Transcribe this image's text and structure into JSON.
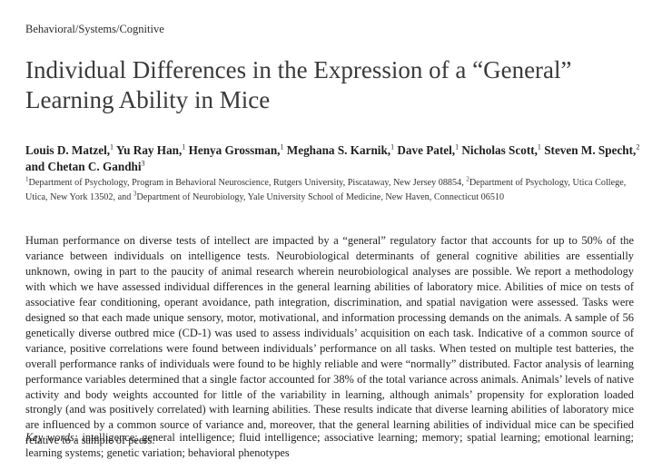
{
  "section_label": "Behavioral/Systems/Cognitive",
  "title": {
    "line1": "Individual Differences in the Expression of a “General”",
    "line2": "Learning Ability in Mice"
  },
  "authors": [
    {
      "name": "Louis D. Matzel,",
      "aff": "1"
    },
    {
      "name": "Yu Ray Han,",
      "aff": "1"
    },
    {
      "name": "Henya Grossman,",
      "aff": "1"
    },
    {
      "name": "Meghana S. Karnik,",
      "aff": "1"
    },
    {
      "name": "Dave Patel,",
      "aff": "1"
    },
    {
      "name": "Nicholas Scott,",
      "aff": "1"
    },
    {
      "name": "Steven M. Specht,",
      "aff": "2"
    },
    {
      "name": "and Chetan C. Gandhi",
      "aff": "3"
    }
  ],
  "affiliations": {
    "aff1_num": "1",
    "aff1": "Department of Psychology, Program in Behavioral Neuroscience, Rutgers University, Piscataway, New Jersey 08854, ",
    "aff2_num": "2",
    "aff2": "Department of Psychology, Utica College, Utica, New York 13502, and ",
    "aff3_num": "3",
    "aff3": "Department of Neurobiology, Yale University School of Medicine, New Haven, Connecticut 06510"
  },
  "abstract": "Human performance on diverse tests of intellect are impacted by a “general” regulatory factor that accounts for up to 50% of the variance between individuals on intelligence tests. Neurobiological determinants of general cognitive abilities are essentially unknown, owing in part to the paucity of animal research wherein neurobiological analyses are possible. We report a methodology with which we have assessed individual differences in the general learning abilities of laboratory mice. Abilities of mice on tests of associative fear condition­ing, operant avoidance, path integration, discrimination, and spatial navigation were assessed. Tasks were designed so that each made unique sensory, motor, motivational, and information processing demands on the animals. A sample of 56 genetically diverse outbred mice (CD-1) was used to assess individuals’ acquisition on each task. Indicative of a common source of variance, positive correlations were found between individuals’ performance on all tasks. When tested on multiple test batteries, the overall performance ranks of individuals were found to be highly reliable and were “normally” distributed. Factor analysis of learning performance variables deter­mined that a single factor accounted for 38% of the total variance across animals. Animals’ levels of native activity and body weights accounted for little of the variability in learning, although animals’ propensity for exploration loaded strongly (and was positively correlated) with learning abilities. These results indicate that diverse learning abilities of laboratory mice are influenced by a common source of variance and, moreover, that the general learning abilities of individual mice can be specified relative to a sample of peers.",
  "keywords": {
    "label": "Key words:",
    "text": " intelligence; general intelligence; fluid intelligence; associative learning; memory; spatial learning; emotional learning; learn­ing systems; genetic variation; behavioral phenotypes"
  }
}
